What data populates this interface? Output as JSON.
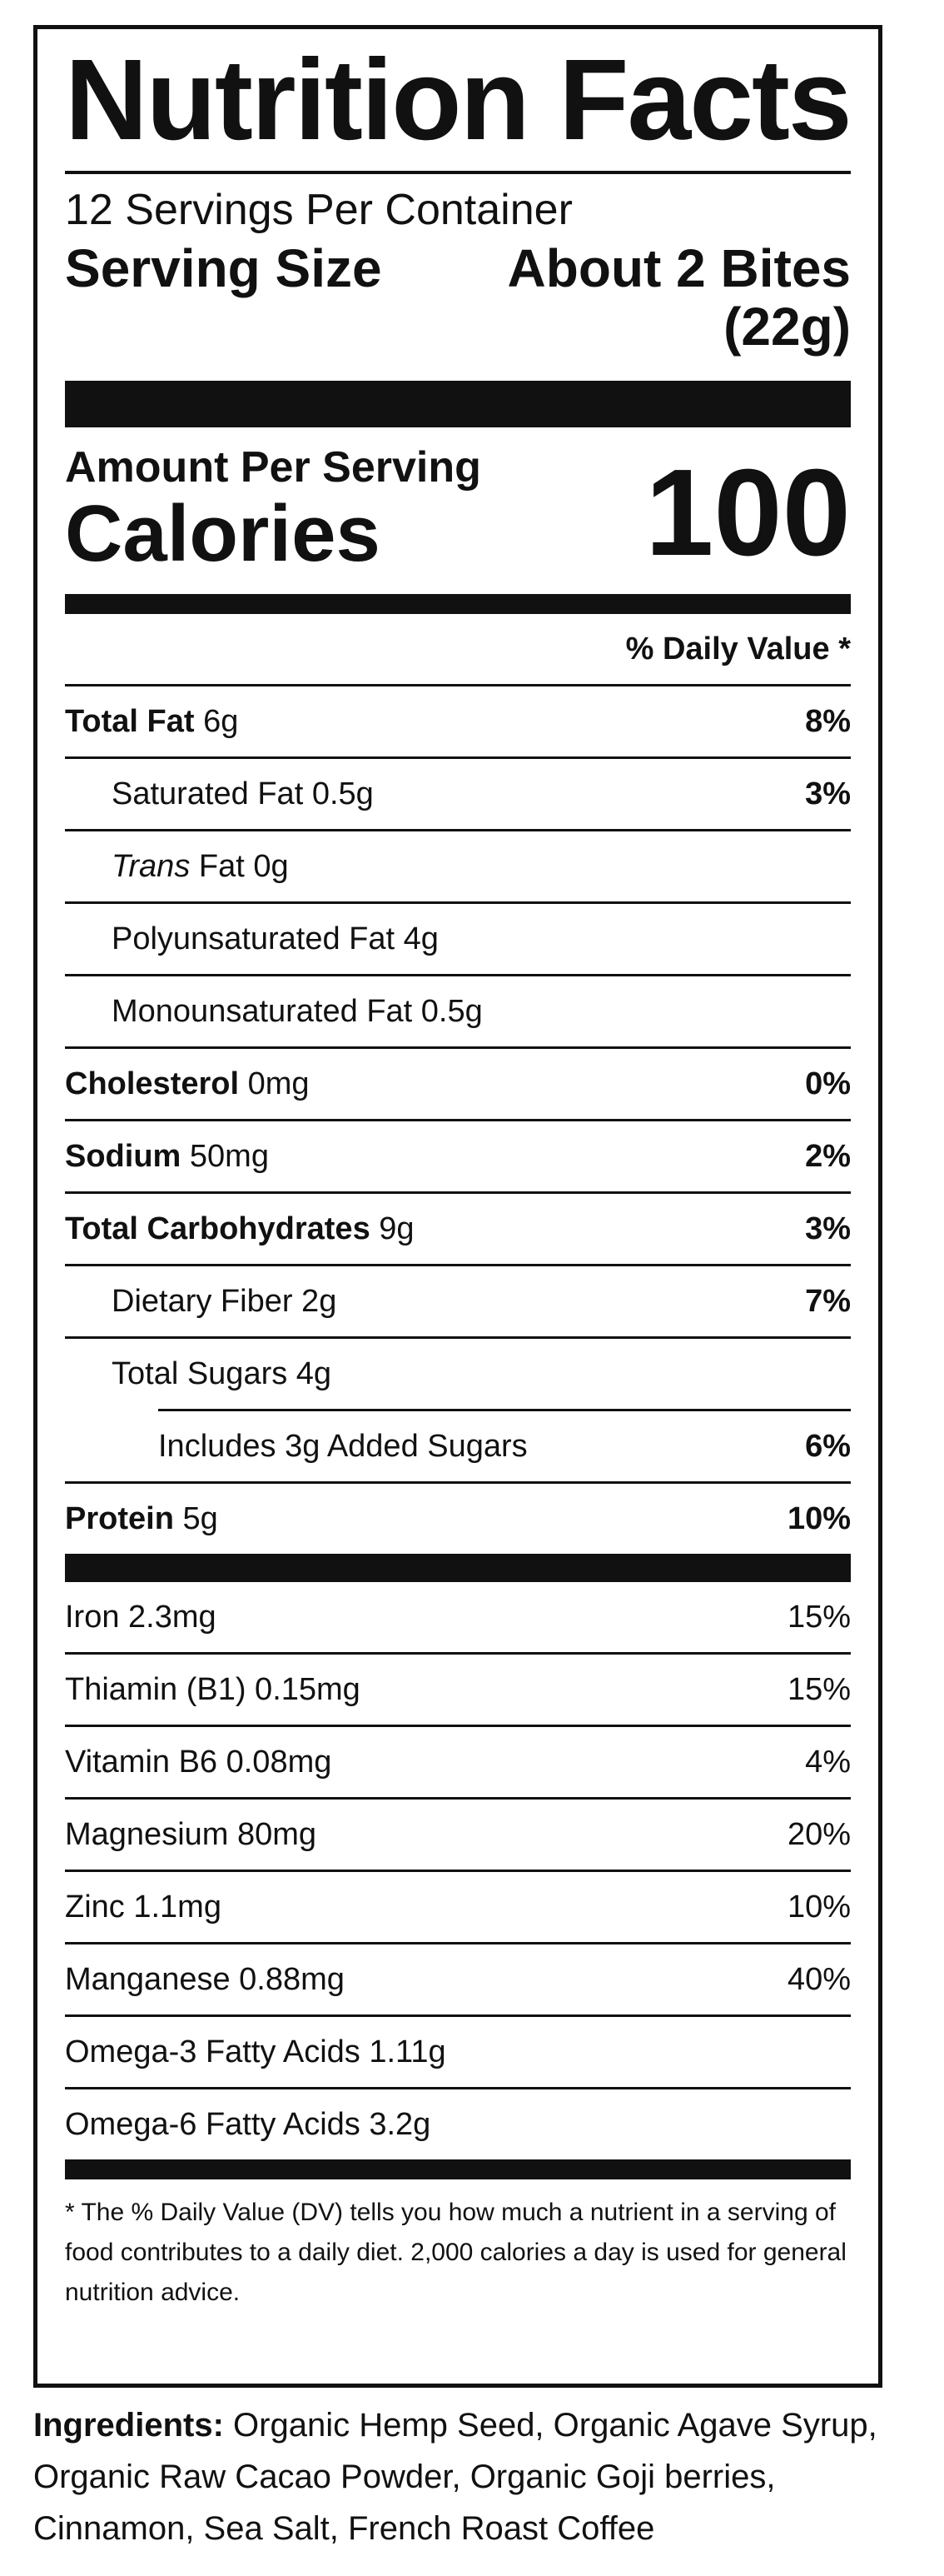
{
  "label": {
    "title": "Nutrition Facts",
    "servings_per_container": "12 Servings Per Container",
    "serving_size_label": "Serving Size",
    "serving_size_value_line1": "About 2 Bites",
    "serving_size_value_line2": "(22g)",
    "amount_per_serving": "Amount Per Serving",
    "calories_label": "Calories",
    "calories_value": "100",
    "daily_value_header": "% Daily Value *"
  },
  "nutrients": [
    {
      "name": "Total Fat",
      "amount": "6g",
      "dv": "8%"
    },
    {
      "name": "Saturated Fat",
      "amount": "0.5g",
      "dv": "3%"
    },
    {
      "name": "Trans",
      "rest": "Fat 0g",
      "dv": ""
    },
    {
      "name": "Polyunsaturated Fat 4g",
      "dv": ""
    },
    {
      "name": "Monounsaturated Fat 0.5g",
      "dv": ""
    },
    {
      "name": "Cholesterol",
      "amount": "0mg",
      "dv": "0%"
    },
    {
      "name": "Sodium",
      "amount": "50mg",
      "dv": "2%"
    },
    {
      "name": "Total Carbohydrates",
      "amount": "9g",
      "dv": "3%"
    },
    {
      "name": "Dietary Fiber 2g",
      "dv": "7%"
    },
    {
      "name": "Total Sugars 4g",
      "dv": ""
    },
    {
      "name": "Includes 3g Added Sugars",
      "dv": "6%"
    },
    {
      "name": "Protein",
      "amount": "5g",
      "dv": "10%"
    }
  ],
  "vitamins": [
    {
      "name": "Iron 2.3mg",
      "dv": "15%"
    },
    {
      "name": "Thiamin (B1) 0.15mg",
      "dv": "15%"
    },
    {
      "name": "Vitamin B6 0.08mg",
      "dv": "4%"
    },
    {
      "name": "Magnesium 80mg",
      "dv": "20%"
    },
    {
      "name": "Zinc 1.1mg",
      "dv": "10%"
    },
    {
      "name": "Manganese 0.88mg",
      "dv": "40%"
    },
    {
      "name": "Omega-3 Fatty Acids 1.11g",
      "dv": ""
    },
    {
      "name": "Omega-6 Fatty Acids 3.2g",
      "dv": ""
    }
  ],
  "footnote": "* The % Daily Value (DV) tells you how much a nutrient in a serving of food contributes to a daily diet. 2,000 calories a day is used for general nutrition advice.",
  "ingredients": {
    "label": "Ingredients:",
    "text": "Organic Hemp Seed, Organic Agave Syrup, Organic Raw Cacao Powder, Organic Goji berries, Cinnamon, Sea Salt, French Roast Coffee"
  }
}
